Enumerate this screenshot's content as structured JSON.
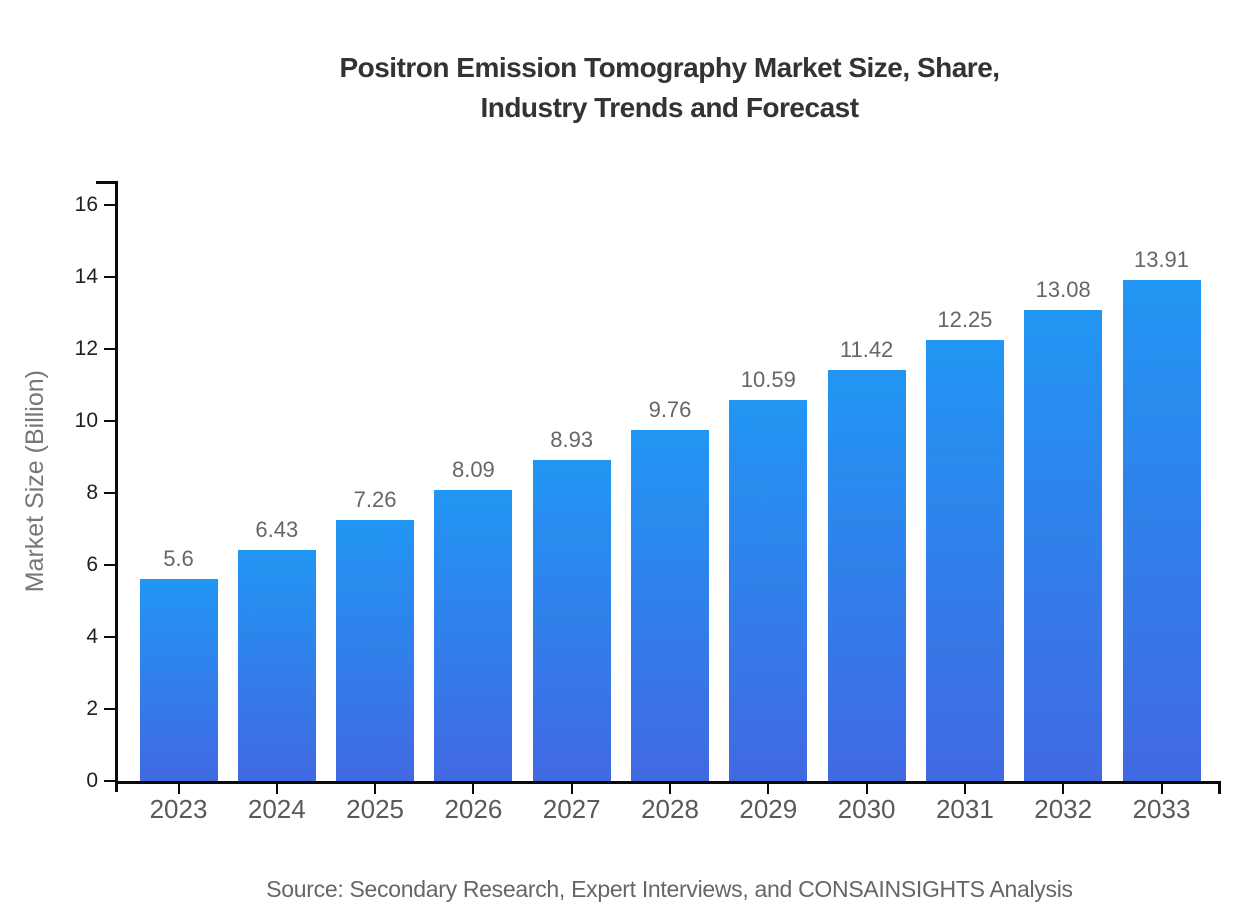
{
  "chart_data": {
    "type": "bar",
    "title": "Positron Emission Tomography Market Size, Share, Industry Trends and Forecast",
    "title_lines": [
      "Positron Emission Tomography Market Size, Share,",
      "Industry Trends and Forecast"
    ],
    "categories": [
      "2023",
      "2024",
      "2025",
      "2026",
      "2027",
      "2028",
      "2029",
      "2030",
      "2031",
      "2032",
      "2033"
    ],
    "values": [
      5.6,
      6.43,
      7.26,
      8.09,
      8.93,
      9.76,
      10.59,
      11.42,
      12.25,
      13.08,
      13.91
    ],
    "value_labels": [
      "5.6",
      "6.43",
      "7.26",
      "8.09",
      "8.93",
      "9.76",
      "10.59",
      "11.42",
      "12.25",
      "13.08",
      "13.91"
    ],
    "xlabel": "",
    "ylabel": "Market Size (Billion)",
    "ylim": [
      0,
      16
    ],
    "yticks": [
      0,
      2,
      4,
      6,
      8,
      10,
      12,
      14,
      16
    ],
    "grid": false,
    "legend": false,
    "bar_gradient_top": "#2196f3",
    "bar_gradient_bottom": "#4169e1",
    "axis_color": "#0a0a0a",
    "title_color": "#333333",
    "label_color": "#666666",
    "source_note": "Source: Secondary Research, Expert Interviews, and CONSAINSIGHTS Analysis"
  }
}
